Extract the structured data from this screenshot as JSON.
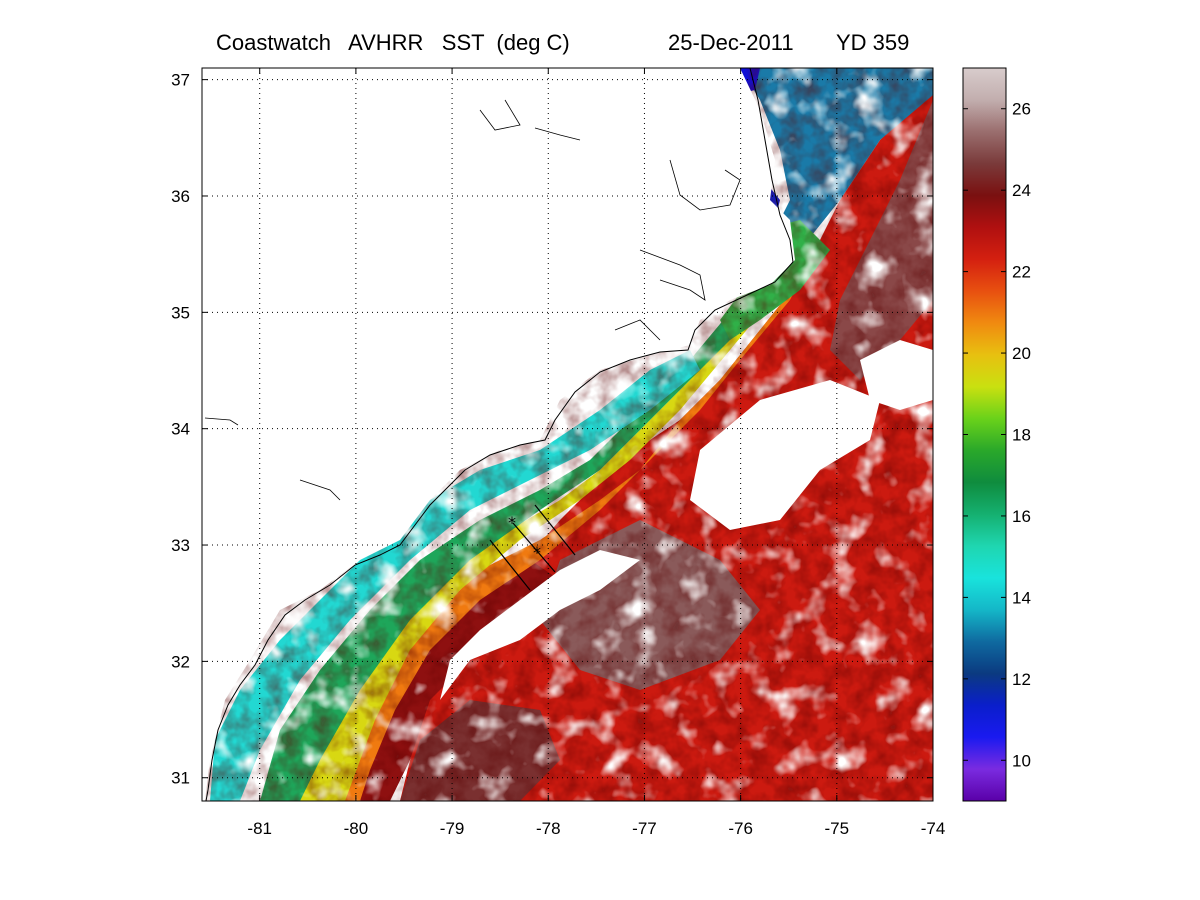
{
  "title": {
    "main": "Coastwatch   AVHRR   SST  (deg C)",
    "date": "25-Dec-2011",
    "yearday": "YD 359"
  },
  "map": {
    "lon_range": [
      -81.6,
      -74
    ],
    "lat_range": [
      30.8,
      37.1
    ],
    "lon_ticks": [
      -81,
      -80,
      -79,
      -78,
      -77,
      -76,
      -75,
      -74
    ],
    "lat_ticks": [
      31,
      32,
      33,
      34,
      35,
      36,
      37
    ],
    "grid": "dotted"
  },
  "colorbar": {
    "range": [
      9,
      27
    ],
    "ticks": [
      10,
      12,
      14,
      16,
      18,
      20,
      22,
      24,
      26
    ],
    "colors": [
      "#5a00a8",
      "#7a2be0",
      "#1a1af0",
      "#0a1ecb",
      "#0b3a80",
      "#0f6aa0",
      "#14b7c8",
      "#19e3dc",
      "#1fd6b0",
      "#15b070",
      "#0f8c3e",
      "#2aa82a",
      "#6ad21a",
      "#c9e010",
      "#e8c010",
      "#f08a10",
      "#e85010",
      "#d42010",
      "#b01010",
      "#7a1010",
      "#7a3a3a",
      "#9a6e6e",
      "#c2aeae",
      "#d8cccc"
    ]
  }
}
